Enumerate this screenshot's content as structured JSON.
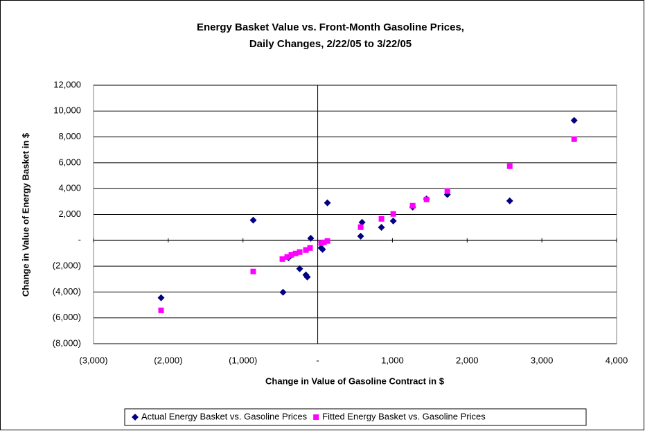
{
  "chart_data": {
    "type": "scatter",
    "title": "Energy Basket Value vs. Front-Month Gasoline Prices,",
    "subtitle": "Daily Changes, 2/22/05 to 3/22/05",
    "x_label": "Change in Value of Gasoline Contract in $",
    "y_label": "Change in Value of Energy Basket in $",
    "xlim": [
      -3000,
      4000
    ],
    "xticks": [
      {
        "value": -3000,
        "label": "(3,000)"
      },
      {
        "value": -2000,
        "label": "(2,000)"
      },
      {
        "value": -1000,
        "label": "(1,000)"
      },
      {
        "value": 0,
        "label": "-"
      },
      {
        "value": 1000,
        "label": "1,000"
      },
      {
        "value": 2000,
        "label": "2,000"
      },
      {
        "value": 3000,
        "label": "3,000"
      },
      {
        "value": 4000,
        "label": "4,000"
      }
    ],
    "ylim": [
      -8000,
      12000
    ],
    "yticks": [
      {
        "value": -8000,
        "label": "(8,000)"
      },
      {
        "value": -6000,
        "label": "(6,000)"
      },
      {
        "value": -4000,
        "label": "(4,000)"
      },
      {
        "value": -2000,
        "label": "(2,000)"
      },
      {
        "value": 0,
        "label": "-"
      },
      {
        "value": 2000,
        "label": "2,000"
      },
      {
        "value": 4000,
        "label": "4,000"
      },
      {
        "value": 6000,
        "label": "6,000"
      },
      {
        "value": 8000,
        "label": "8,000"
      },
      {
        "value": 10000,
        "label": "10,000"
      },
      {
        "value": 12000,
        "label": "12,000"
      }
    ],
    "grid": true,
    "legend": "bottom",
    "series": [
      {
        "name": "Actual Energy Basket vs. Gasoline Prices",
        "color": "#000080",
        "marker": "diamond",
        "x": [
          -2096,
          -863,
          -464,
          -390,
          -241,
          -158,
          -139,
          -93,
          46,
          65,
          130,
          575,
          594,
          853,
          1011,
          1271,
          1456,
          1735,
          2570,
          3432
        ],
        "values": [
          -4450,
          1555,
          -4020,
          -1350,
          -2200,
          -2680,
          -2840,
          160,
          -590,
          -700,
          2900,
          320,
          1390,
          1000,
          1500,
          2570,
          3200,
          3540,
          3050,
          9280
        ]
      },
      {
        "name": "Fitted Energy Basket vs. Gasoline Prices",
        "color": "#ff00ff",
        "marker": "square",
        "x": [
          -2096,
          -863,
          -473,
          -408,
          -353,
          -297,
          -241,
          -158,
          -102,
          46,
          84,
          130,
          575,
          853,
          1011,
          1271,
          1456,
          1735,
          2570,
          3432
        ],
        "values": [
          -5420,
          -2410,
          -1450,
          -1290,
          -1130,
          -1020,
          -910,
          -750,
          -590,
          -210,
          -160,
          -50,
          1020,
          1660,
          2040,
          2680,
          3160,
          3810,
          5740,
          7830
        ]
      }
    ]
  }
}
